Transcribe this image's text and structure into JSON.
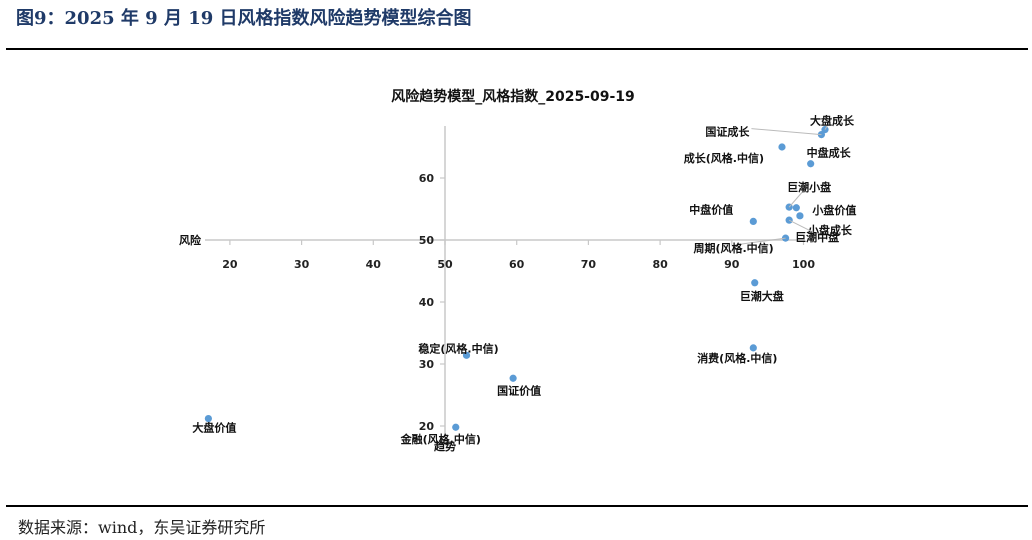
{
  "figure_title": "图9：2025 年 9 月 19 日风格指数风险趋势模型综合图",
  "source": "数据来源：wind，东吴证券研究所",
  "chart_data": {
    "type": "scatter",
    "title": "风险趋势模型_风格指数_2025-09-19",
    "xlabel": "风险",
    "ylabel": "趋势",
    "x_ticks": [
      20,
      30,
      40,
      50,
      60,
      70,
      80,
      90,
      100
    ],
    "y_ticks": [
      20,
      30,
      40,
      50,
      60
    ],
    "xlim": [
      17,
      103
    ],
    "ylim": [
      19,
      68
    ],
    "axis_cross": [
      50,
      50
    ],
    "grid": false,
    "point_color": "#5b9bd5",
    "points": [
      {
        "name": "大盘成长",
        "x": 103.0,
        "y": 67.8
      },
      {
        "name": "国证成长",
        "x": 102.5,
        "y": 67.0
      },
      {
        "name": "成长(风格.中信)",
        "x": 97.0,
        "y": 65.0
      },
      {
        "name": "中盘成长",
        "x": 101.0,
        "y": 62.3
      },
      {
        "name": "巨潮小盘",
        "x": 98.0,
        "y": 55.3
      },
      {
        "name": "小盘价值",
        "x": 99.0,
        "y": 55.2
      },
      {
        "name": "小盘成长",
        "x": 99.5,
        "y": 53.9
      },
      {
        "name": "中盘价值",
        "x": 93.0,
        "y": 53.0
      },
      {
        "name": "巨潮中盘",
        "x": 98.0,
        "y": 53.2
      },
      {
        "name": "周期(风格.中信)",
        "x": 97.5,
        "y": 50.3
      },
      {
        "name": "巨潮大盘",
        "x": 93.2,
        "y": 43.1
      },
      {
        "name": "消费(风格.中信)",
        "x": 93.0,
        "y": 32.6
      },
      {
        "name": "稳定(风格.中信)",
        "x": 53.0,
        "y": 31.4
      },
      {
        "name": "国证价值",
        "x": 59.5,
        "y": 27.7
      },
      {
        "name": "大盘价值",
        "x": 17.0,
        "y": 21.2
      },
      {
        "name": "金融(风格.中信)",
        "x": 51.5,
        "y": 19.8
      }
    ]
  }
}
